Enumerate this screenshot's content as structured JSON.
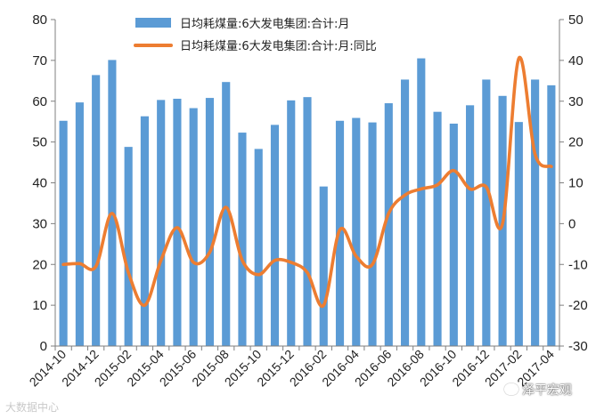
{
  "chart_data": {
    "type": "bar+line",
    "categories": [
      "2014-10",
      "2014-11",
      "2014-12",
      "2015-01",
      "2015-02",
      "2015-03",
      "2015-04",
      "2015-05",
      "2015-06",
      "2015-07",
      "2015-08",
      "2015-09",
      "2015-10",
      "2015-11",
      "2015-12",
      "2016-01",
      "2016-02",
      "2016-03",
      "2016-04",
      "2016-05",
      "2016-06",
      "2016-07",
      "2016-08",
      "2016-09",
      "2016-10",
      "2016-11",
      "2016-12",
      "2017-01",
      "2017-02",
      "2017-03",
      "2017-04"
    ],
    "x_tick_labels": [
      "2014-10",
      "2014-12",
      "2015-02",
      "2015-04",
      "2015-06",
      "2015-08",
      "2015-10",
      "2015-12",
      "2016-02",
      "2016-04",
      "2016-06",
      "2016-08",
      "2016-10",
      "2016-12",
      "2017-02",
      "2017-04"
    ],
    "series": [
      {
        "name": "日均耗煤量:6大发电集团:合计:月",
        "type": "bar",
        "axis": "left",
        "color": "#5b9bd5",
        "values": [
          55.2,
          59.7,
          66.4,
          70.1,
          48.8,
          56.3,
          60.3,
          60.6,
          58.3,
          60.8,
          64.7,
          52.3,
          48.3,
          54.2,
          60.2,
          61.0,
          39.1,
          55.2,
          55.9,
          54.8,
          59.5,
          65.3,
          70.5,
          57.4,
          54.5,
          59.0,
          65.3,
          61.3,
          54.9,
          65.3,
          63.9
        ]
      },
      {
        "name": "日均耗煤量:6大发电集团:合计:月:同比",
        "type": "line",
        "axis": "right",
        "color": "#ed7d31",
        "values": [
          -10.0,
          -9.8,
          -10.5,
          2.5,
          -12.0,
          -20.0,
          -9.0,
          -1.0,
          -9.5,
          -7.0,
          4.0,
          -9.0,
          -12.5,
          -9.0,
          -9.5,
          -12.0,
          -20.0,
          -1.5,
          -8.0,
          -10.0,
          2.5,
          7.0,
          8.5,
          9.5,
          13.0,
          8.5,
          9.0,
          0.0,
          40.5,
          17.0,
          14.0
        ]
      }
    ],
    "y_left": {
      "min": 0,
      "max": 80,
      "step": 10,
      "tick_labels": [
        "0",
        "10",
        "20",
        "30",
        "40",
        "50",
        "60",
        "70",
        "80"
      ]
    },
    "y_right": {
      "min": -30,
      "max": 50,
      "step": 10,
      "tick_labels": [
        "-30",
        "-20",
        "-10",
        "0",
        "10",
        "20",
        "30",
        "40",
        "50"
      ]
    },
    "grid": false,
    "legend_position": "top-center",
    "title": "",
    "xlabel": "",
    "ylabel": ""
  },
  "watermarks": {
    "left": "大数据中心",
    "right": "泽平宏观"
  }
}
